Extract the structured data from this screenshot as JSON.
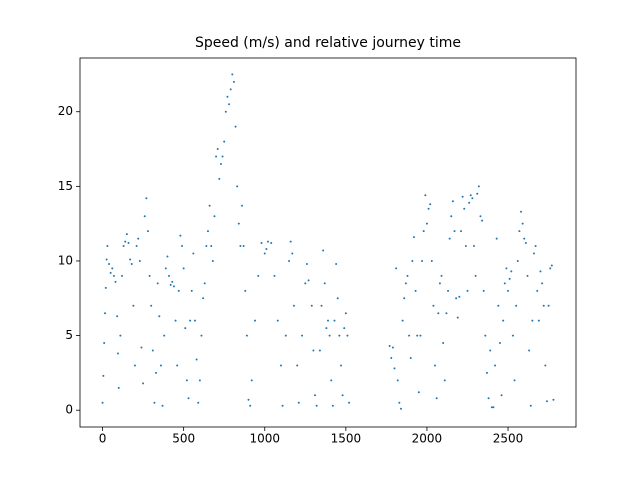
{
  "chart_data": {
    "type": "scatter",
    "title": "Speed (m/s) and relative journey time",
    "color": "#1f77b4",
    "xlim": [
      -139,
      2919
    ],
    "ylim": [
      -1.125,
      23.6
    ],
    "xticks": [
      0,
      500,
      1000,
      1500,
      2000,
      2500
    ],
    "yticks": [
      0,
      5,
      10,
      15,
      20
    ],
    "x": [
      0,
      5,
      10,
      15,
      20,
      25,
      30,
      40,
      50,
      60,
      70,
      80,
      90,
      95,
      100,
      110,
      120,
      130,
      140,
      150,
      160,
      170,
      180,
      190,
      200,
      210,
      220,
      230,
      240,
      250,
      260,
      270,
      280,
      290,
      300,
      310,
      320,
      330,
      340,
      350,
      360,
      370,
      380,
      390,
      400,
      410,
      420,
      430,
      440,
      450,
      460,
      470,
      480,
      490,
      500,
      510,
      520,
      530,
      540,
      550,
      560,
      570,
      580,
      590,
      600,
      610,
      620,
      630,
      640,
      650,
      660,
      670,
      680,
      690,
      700,
      710,
      720,
      730,
      740,
      750,
      760,
      770,
      780,
      790,
      800,
      810,
      820,
      830,
      840,
      850,
      860,
      870,
      880,
      890,
      900,
      910,
      920,
      940,
      960,
      980,
      1000,
      1010,
      1020,
      1040,
      1060,
      1080,
      1100,
      1110,
      1130,
      1150,
      1160,
      1170,
      1180,
      1200,
      1210,
      1230,
      1250,
      1260,
      1270,
      1290,
      1300,
      1310,
      1320,
      1340,
      1350,
      1360,
      1370,
      1380,
      1390,
      1400,
      1410,
      1420,
      1430,
      1440,
      1450,
      1460,
      1470,
      1480,
      1490,
      1500,
      1510,
      1520,
      1770,
      1780,
      1790,
      1800,
      1810,
      1820,
      1830,
      1840,
      1850,
      1860,
      1870,
      1880,
      1890,
      1900,
      1910,
      1920,
      1930,
      1940,
      1950,
      1960,
      1970,
      1980,
      1990,
      2000,
      2010,
      2020,
      2030,
      2040,
      2050,
      2060,
      2070,
      2080,
      2090,
      2100,
      2110,
      2120,
      2130,
      2140,
      2150,
      2160,
      2170,
      2180,
      2190,
      2200,
      2210,
      2220,
      2230,
      2240,
      2250,
      2260,
      2270,
      2280,
      2290,
      2300,
      2310,
      2320,
      2330,
      2340,
      2350,
      2360,
      2370,
      2380,
      2390,
      2400,
      2410,
      2420,
      2430,
      2440,
      2450,
      2460,
      2470,
      2480,
      2490,
      2500,
      2510,
      2520,
      2530,
      2540,
      2550,
      2560,
      2570,
      2580,
      2590,
      2600,
      2610,
      2620,
      2630,
      2640,
      2650,
      2660,
      2670,
      2680,
      2690,
      2700,
      2710,
      2720,
      2730,
      2740,
      2750,
      2760,
      2770,
      2780
    ],
    "values": [
      0.5,
      2.3,
      4.5,
      6.5,
      8.2,
      10.1,
      11,
      9.8,
      9.2,
      9.5,
      9.0,
      8.6,
      6.3,
      3.8,
      1.5,
      5,
      9,
      11,
      11.3,
      11.8,
      11.2,
      10.1,
      9.8,
      7,
      3,
      11,
      11.5,
      10,
      4.2,
      1.8,
      13,
      14.2,
      12,
      9,
      7,
      4,
      0.5,
      2.5,
      8.5,
      6.3,
      3,
      0.3,
      5,
      9.5,
      10.3,
      9,
      8.4,
      8.6,
      8.3,
      6,
      3,
      8,
      11.7,
      11,
      9.5,
      5.5,
      2,
      0.8,
      6,
      8,
      10.5,
      6,
      3.4,
      0.5,
      2,
      5,
      7.5,
      8.5,
      11,
      12,
      13.7,
      11,
      10,
      13,
      17,
      17.5,
      15.5,
      16.5,
      17,
      18,
      20,
      21,
      20.5,
      21.5,
      22.5,
      22,
      19,
      15,
      12.5,
      11,
      13.7,
      11,
      8,
      5,
      0.7,
      0.3,
      2,
      6,
      9,
      11.2,
      10.5,
      10.8,
      11.3,
      11.2,
      9,
      6,
      3,
      0.3,
      5,
      10,
      11.3,
      10.5,
      7,
      3,
      0.5,
      5,
      8.5,
      9.8,
      8.7,
      7,
      4,
      1,
      0.3,
      4,
      7,
      10.7,
      8.5,
      5.5,
      6,
      5,
      2,
      0.3,
      6,
      9.8,
      7.5,
      5,
      3,
      1,
      5.5,
      6.5,
      5,
      0.5,
      4.3,
      3.5,
      4.2,
      2.8,
      9.5,
      2,
      0.5,
      0.1,
      6,
      7.5,
      8.5,
      9,
      5,
      3.5,
      10,
      11.6,
      8,
      5,
      1.2,
      5,
      10,
      12,
      14.4,
      12.5,
      13.5,
      13.8,
      10,
      7,
      3,
      0.8,
      6.5,
      8.5,
      9,
      4.5,
      2,
      6.5,
      8,
      11.5,
      13,
      14,
      12,
      7.5,
      6.2,
      7.6,
      12,
      14.3,
      13.5,
      11,
      8,
      13.9,
      14.4,
      14.2,
      11,
      9,
      14.5,
      15,
      13,
      12.7,
      8,
      5,
      2.5,
      0.8,
      4,
      0.2,
      0.2,
      3,
      11.5,
      7,
      4.5,
      1,
      6,
      8.5,
      9.5,
      8,
      8.8,
      9.3,
      5,
      2,
      7,
      10,
      12,
      13.3,
      12.5,
      11.5,
      11.2,
      9,
      4,
      0.3,
      6,
      10.5,
      11,
      8,
      6,
      9.3,
      8.5,
      7,
      3,
      0.6,
      7,
      9.5,
      9.7,
      0.7
    ]
  }
}
